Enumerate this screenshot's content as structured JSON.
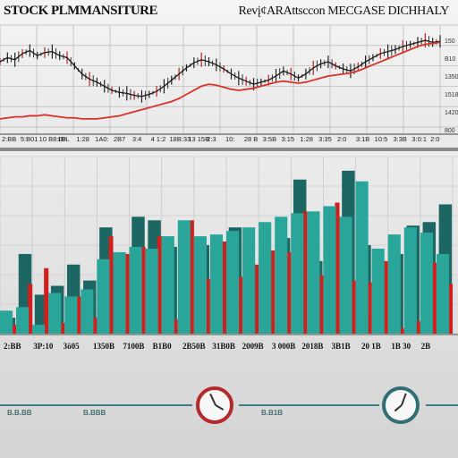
{
  "header": {
    "title_left": "STOCK PLMMANSITURE",
    "title_right": "RevįȼARAttsccon MECGASE DICHHALY"
  },
  "top_x_ticks": [
    "2:BB",
    "5:B01",
    "10 B8:00",
    "1BL",
    "1:28",
    "1A0:",
    "2B7",
    "3:4",
    "4 1:2",
    "18B:33",
    "13 15B",
    "2:3",
    "10:",
    "28 B",
    "3:5B",
    "3:15",
    "1:28",
    "3:35",
    "2:0",
    "3:1B",
    "10:5",
    "3:3B",
    "3:0:1",
    "2:0"
  ],
  "top_y_ticks": [
    "150",
    "B10",
    "1350",
    "1518",
    "1420",
    "800"
  ],
  "bar_x_ticks": [
    "2:BB",
    "3P:10",
    "3ö05",
    "1350B",
    "7100B",
    "B1B0",
    "2B50B",
    "31B0B",
    "2009B",
    "3 000B",
    "2018B",
    "3B1B",
    "20 1B",
    "1B 30",
    "2B"
  ],
  "footer": {
    "left_label": "B.B.BB",
    "mid_label": "B.BBB",
    "right_label": "B.B1B"
  },
  "colors": {
    "teal": "#2aa59a",
    "dark_teal": "#1c6763",
    "red": "#d0201e",
    "price_line": "#1a1a1a",
    "trend_line": "#d8322a"
  },
  "chart_data": [
    {
      "type": "line",
      "title": "STOCK PLMMANSITURE",
      "series": [
        {
          "values": [
            64,
            68,
            66,
            72,
            75,
            70,
            73,
            74,
            70,
            68,
            60,
            52,
            47,
            44,
            40,
            36,
            34,
            33,
            31,
            30,
            32,
            35,
            40,
            46,
            52,
            58,
            63,
            66,
            64,
            61,
            57,
            52,
            48,
            45,
            42,
            44,
            46,
            50,
            55,
            52,
            48,
            52,
            58,
            62,
            64,
            60,
            57,
            55,
            59,
            64,
            68,
            72,
            74,
            76,
            79,
            81,
            83,
            85,
            83,
            84
          ]
        },
        {
          "values": [
            8,
            9,
            10,
            10,
            11,
            11,
            12,
            11,
            10,
            9,
            9,
            8,
            8,
            8,
            9,
            10,
            11,
            13,
            15,
            17,
            19,
            21,
            23,
            25,
            28,
            32,
            36,
            40,
            42,
            41,
            39,
            37,
            36,
            37,
            38,
            40,
            42,
            44,
            45,
            44,
            43,
            44,
            46,
            48,
            50,
            51,
            52,
            53,
            55,
            58,
            61,
            64,
            67,
            70,
            73,
            76,
            79,
            81,
            82,
            83
          ]
        }
      ],
      "ylim": [
        0,
        100
      ],
      "grid": true
    },
    {
      "type": "bar",
      "title": "",
      "series": [
        {
          "values": [
            5,
            28,
            37,
            6,
            21,
            9,
            55,
            45,
            49,
            55,
            8,
            64,
            31,
            52,
            32,
            39,
            47,
            46,
            69,
            33,
            74,
            30,
            29,
            41,
            3,
            7,
            40,
            28
          ]
        },
        {
          "values": [
            9,
            45,
            22,
            27,
            39,
            30,
            60,
            36,
            66,
            64,
            49,
            44,
            50,
            40,
            60,
            34,
            43,
            54,
            87,
            41,
            18,
            92,
            50,
            36,
            45,
            61,
            63,
            73
          ]
        },
        {
          "values": [
            13,
            15,
            5,
            23,
            21,
            25,
            42,
            46,
            49,
            48,
            55,
            64,
            55,
            56,
            58,
            60,
            63,
            66,
            68,
            69,
            72,
            66,
            86,
            48,
            56,
            60,
            57,
            45
          ]
        }
      ],
      "ylim": [
        0,
        100
      ],
      "grid": true
    }
  ]
}
